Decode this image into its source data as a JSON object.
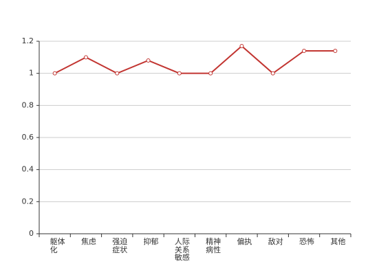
{
  "chart_data": {
    "type": "line",
    "categories": [
      "躯体化",
      "焦虑",
      "强迫症状",
      "抑郁",
      "人际关系敏感",
      "精神病性",
      "偏执",
      "敌对",
      "恐怖",
      "其他"
    ],
    "series": [
      {
        "color": "#c23531",
        "values": [
          1,
          1.1,
          1,
          1.08,
          1,
          1,
          1.17,
          1,
          1.14,
          1.14
        ]
      }
    ],
    "ylim": [
      0,
      1.2
    ],
    "yticks": [
      0,
      0.2,
      0.4,
      0.6,
      0.8,
      1,
      1.2
    ],
    "grid": true
  }
}
